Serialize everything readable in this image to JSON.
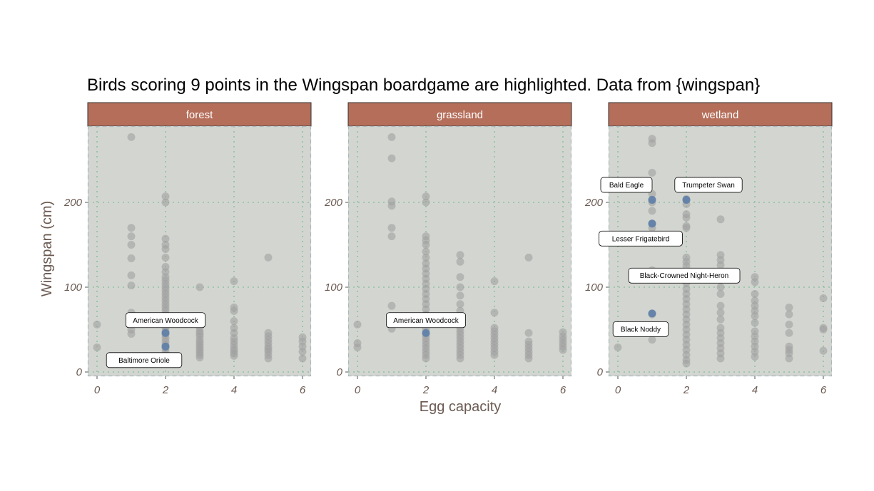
{
  "colors": {
    "strip": "#b56e5a",
    "panel_bg": "#d3d6d0",
    "panel_border": "#a9b7be",
    "grid": "#8fc0a3",
    "point": "#a0a0a0",
    "highlight": "#5d7ea8",
    "axis_text": "#6b5a52"
  },
  "chart_data": {
    "type": "scatter",
    "title": "Birds scoring 9 points in the Wingspan boardgame are highlighted. Data from {wingspan}",
    "xlabel": "Egg capacity",
    "ylabel": "Wingspan (cm)",
    "xlim": [
      -0.3,
      6.3
    ],
    "ylim": [
      -5,
      290
    ],
    "x_ticks": [
      0,
      2,
      4,
      6
    ],
    "y_ticks": [
      0,
      100,
      200
    ],
    "grid": true,
    "facets": [
      {
        "name": "forest",
        "points": [
          [
            0,
            56
          ],
          [
            0,
            29
          ],
          [
            1,
            277
          ],
          [
            1,
            170
          ],
          [
            1,
            160
          ],
          [
            1,
            150
          ],
          [
            1,
            134
          ],
          [
            1,
            114
          ],
          [
            1,
            102
          ],
          [
            1,
            70
          ],
          [
            1,
            62
          ],
          [
            1,
            56
          ],
          [
            1,
            50
          ],
          [
            1,
            45
          ],
          [
            2,
            207
          ],
          [
            2,
            200
          ],
          [
            2,
            157
          ],
          [
            2,
            150
          ],
          [
            2,
            145
          ],
          [
            2,
            135
          ],
          [
            2,
            124
          ],
          [
            2,
            118
          ],
          [
            2,
            112
          ],
          [
            2,
            108
          ],
          [
            2,
            104
          ],
          [
            2,
            100
          ],
          [
            2,
            96
          ],
          [
            2,
            92
          ],
          [
            2,
            88
          ],
          [
            2,
            84
          ],
          [
            2,
            80
          ],
          [
            2,
            76
          ],
          [
            2,
            72
          ],
          [
            2,
            68
          ],
          [
            2,
            64
          ],
          [
            2,
            60
          ],
          [
            2,
            56
          ],
          [
            2,
            52
          ],
          [
            2,
            48
          ],
          [
            2,
            44
          ],
          [
            2,
            40
          ],
          [
            2,
            36
          ],
          [
            2,
            32
          ],
          [
            2,
            28
          ],
          [
            2,
            24
          ],
          [
            2,
            20
          ],
          [
            3,
            100
          ],
          [
            3,
            52
          ],
          [
            3,
            48
          ],
          [
            3,
            45
          ],
          [
            3,
            42
          ],
          [
            3,
            38
          ],
          [
            3,
            35
          ],
          [
            3,
            32
          ],
          [
            3,
            29
          ],
          [
            3,
            26
          ],
          [
            3,
            23
          ],
          [
            3,
            20
          ],
          [
            3,
            17
          ],
          [
            4,
            107
          ],
          [
            4,
            76
          ],
          [
            4,
            72
          ],
          [
            4,
            60
          ],
          [
            4,
            52
          ],
          [
            4,
            46
          ],
          [
            4,
            40
          ],
          [
            4,
            36
          ],
          [
            4,
            32
          ],
          [
            4,
            28
          ],
          [
            4,
            25
          ],
          [
            4,
            22
          ],
          [
            4,
            19
          ],
          [
            5,
            135
          ],
          [
            5,
            46
          ],
          [
            5,
            42
          ],
          [
            5,
            38
          ],
          [
            5,
            34
          ],
          [
            5,
            30
          ],
          [
            5,
            27
          ],
          [
            5,
            24
          ],
          [
            5,
            20
          ],
          [
            5,
            16
          ],
          [
            6,
            41
          ],
          [
            6,
            36
          ],
          [
            6,
            30
          ],
          [
            6,
            24
          ],
          [
            6,
            16
          ]
        ],
        "highlights": [
          [
            2,
            46
          ],
          [
            2,
            30
          ]
        ],
        "labels": [
          {
            "text": "American Woodcock",
            "x": 2,
            "y": 46
          },
          {
            "text": "Baltimore Oriole",
            "x": 2,
            "y": 30
          }
        ]
      },
      {
        "name": "grassland",
        "points": [
          [
            0,
            56
          ],
          [
            0,
            34
          ],
          [
            0,
            29
          ],
          [
            1,
            277
          ],
          [
            1,
            252
          ],
          [
            1,
            201
          ],
          [
            1,
            196
          ],
          [
            1,
            170
          ],
          [
            1,
            160
          ],
          [
            1,
            78
          ],
          [
            1,
            51
          ],
          [
            2,
            207
          ],
          [
            2,
            200
          ],
          [
            2,
            160
          ],
          [
            2,
            155
          ],
          [
            2,
            150
          ],
          [
            2,
            142
          ],
          [
            2,
            135
          ],
          [
            2,
            128
          ],
          [
            2,
            122
          ],
          [
            2,
            116
          ],
          [
            2,
            110
          ],
          [
            2,
            104
          ],
          [
            2,
            98
          ],
          [
            2,
            92
          ],
          [
            2,
            86
          ],
          [
            2,
            80
          ],
          [
            2,
            74
          ],
          [
            2,
            68
          ],
          [
            2,
            62
          ],
          [
            2,
            56
          ],
          [
            2,
            50
          ],
          [
            2,
            44
          ],
          [
            2,
            40
          ],
          [
            2,
            36
          ],
          [
            2,
            32
          ],
          [
            2,
            28
          ],
          [
            2,
            24
          ],
          [
            2,
            20
          ],
          [
            2,
            16
          ],
          [
            3,
            138
          ],
          [
            3,
            130
          ],
          [
            3,
            112
          ],
          [
            3,
            100
          ],
          [
            3,
            90
          ],
          [
            3,
            80
          ],
          [
            3,
            72
          ],
          [
            3,
            60
          ],
          [
            3,
            52
          ],
          [
            3,
            48
          ],
          [
            3,
            44
          ],
          [
            3,
            40
          ],
          [
            3,
            36
          ],
          [
            3,
            32
          ],
          [
            3,
            28
          ],
          [
            3,
            24
          ],
          [
            3,
            20
          ],
          [
            3,
            16
          ],
          [
            4,
            107
          ],
          [
            4,
            70
          ],
          [
            4,
            52
          ],
          [
            4,
            48
          ],
          [
            4,
            44
          ],
          [
            4,
            40
          ],
          [
            4,
            36
          ],
          [
            4,
            32
          ],
          [
            4,
            28
          ],
          [
            4,
            24
          ],
          [
            4,
            20
          ],
          [
            5,
            135
          ],
          [
            5,
            46
          ],
          [
            5,
            36
          ],
          [
            5,
            32
          ],
          [
            5,
            28
          ],
          [
            5,
            24
          ],
          [
            5,
            20
          ],
          [
            5,
            16
          ],
          [
            6,
            47
          ],
          [
            6,
            42
          ],
          [
            6,
            38
          ],
          [
            6,
            34
          ],
          [
            6,
            30
          ],
          [
            6,
            26
          ]
        ],
        "highlights": [
          [
            2,
            46
          ]
        ],
        "labels": [
          {
            "text": "American Woodcock",
            "x": 2,
            "y": 46
          }
        ]
      },
      {
        "name": "wetland",
        "points": [
          [
            0,
            29
          ],
          [
            1,
            275
          ],
          [
            1,
            270
          ],
          [
            1,
            235
          ],
          [
            1,
            210
          ],
          [
            1,
            200
          ],
          [
            1,
            190
          ],
          [
            1,
            175
          ],
          [
            1,
            170
          ],
          [
            1,
            120
          ],
          [
            1,
            115
          ],
          [
            1,
            68
          ],
          [
            1,
            38
          ],
          [
            2,
            204
          ],
          [
            2,
            198
          ],
          [
            2,
            186
          ],
          [
            2,
            182
          ],
          [
            2,
            172
          ],
          [
            2,
            170
          ],
          [
            2,
            135
          ],
          [
            2,
            130
          ],
          [
            2,
            125
          ],
          [
            2,
            118
          ],
          [
            2,
            112
          ],
          [
            2,
            105
          ],
          [
            2,
            98
          ],
          [
            2,
            92
          ],
          [
            2,
            86
          ],
          [
            2,
            80
          ],
          [
            2,
            74
          ],
          [
            2,
            68
          ],
          [
            2,
            62
          ],
          [
            2,
            56
          ],
          [
            2,
            50
          ],
          [
            2,
            44
          ],
          [
            2,
            38
          ],
          [
            2,
            32
          ],
          [
            2,
            26
          ],
          [
            2,
            20
          ],
          [
            2,
            14
          ],
          [
            2,
            10
          ],
          [
            3,
            180
          ],
          [
            3,
            138
          ],
          [
            3,
            132
          ],
          [
            3,
            126
          ],
          [
            3,
            100
          ],
          [
            3,
            92
          ],
          [
            3,
            78
          ],
          [
            3,
            70
          ],
          [
            3,
            62
          ],
          [
            3,
            52
          ],
          [
            3,
            46
          ],
          [
            3,
            40
          ],
          [
            3,
            34
          ],
          [
            3,
            28
          ],
          [
            3,
            22
          ],
          [
            3,
            16
          ],
          [
            4,
            112
          ],
          [
            4,
            106
          ],
          [
            4,
            92
          ],
          [
            4,
            84
          ],
          [
            4,
            78
          ],
          [
            4,
            72
          ],
          [
            4,
            66
          ],
          [
            4,
            58
          ],
          [
            4,
            48
          ],
          [
            4,
            42
          ],
          [
            4,
            36
          ],
          [
            4,
            30
          ],
          [
            4,
            24
          ],
          [
            4,
            18
          ],
          [
            5,
            76
          ],
          [
            5,
            68
          ],
          [
            5,
            56
          ],
          [
            5,
            46
          ],
          [
            5,
            30
          ],
          [
            5,
            26
          ],
          [
            5,
            22
          ],
          [
            5,
            16
          ],
          [
            6,
            87
          ],
          [
            6,
            52
          ],
          [
            6,
            50
          ],
          [
            6,
            25
          ]
        ],
        "highlights": [
          [
            1,
            203
          ],
          [
            2,
            203
          ],
          [
            1,
            175
          ],
          [
            2,
            112
          ],
          [
            1,
            69
          ]
        ],
        "labels": [
          {
            "text": "Bald Eagle",
            "x": 1,
            "y": 203
          },
          {
            "text": "Trumpeter Swan",
            "x": 2,
            "y": 203
          },
          {
            "text": "Lesser Frigatebird",
            "x": 1,
            "y": 175
          },
          {
            "text": "Black-Crowned Night-Heron",
            "x": 2,
            "y": 112
          },
          {
            "text": "Black Noddy",
            "x": 1,
            "y": 69
          }
        ]
      }
    ]
  }
}
